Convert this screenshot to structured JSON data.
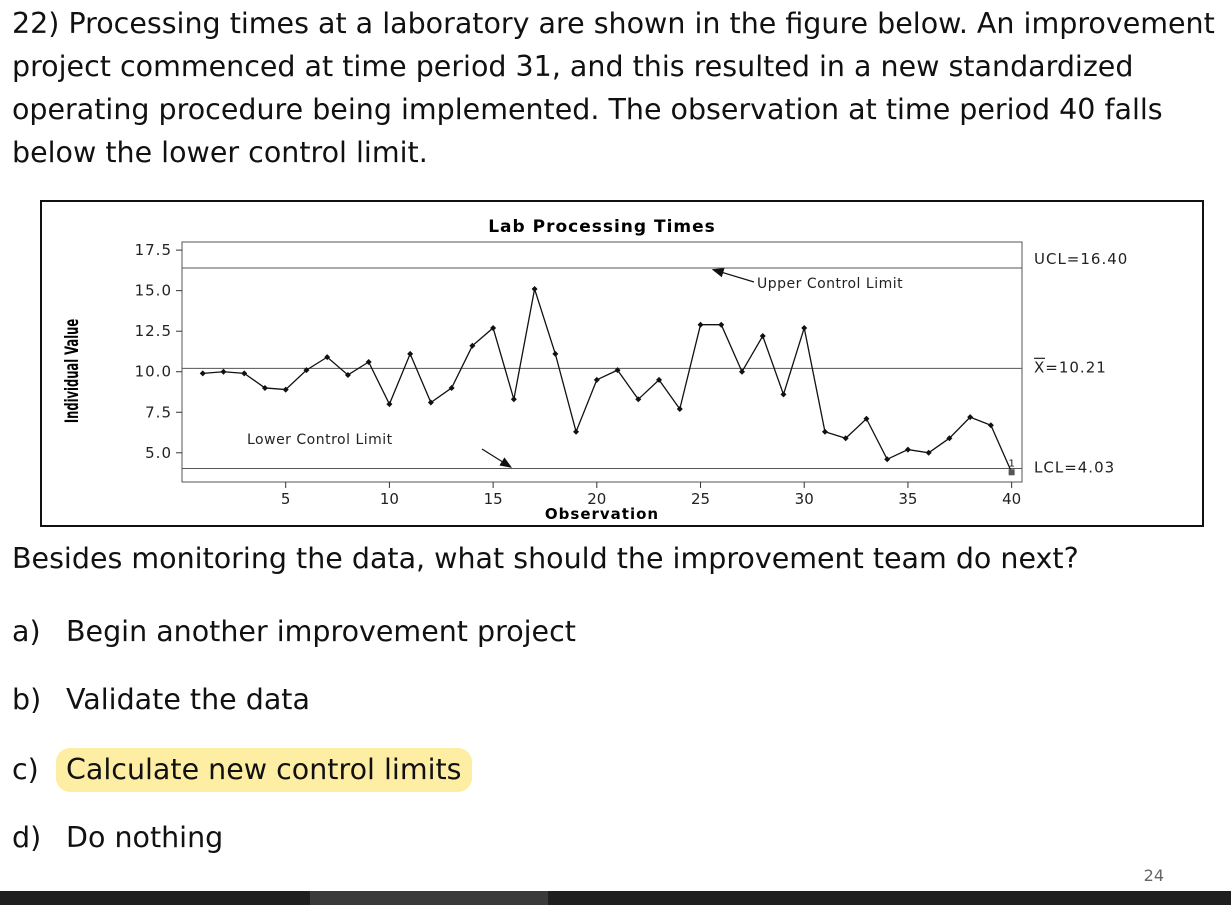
{
  "question": "22) Processing times at a laboratory are shown in the figure below. An improvement project commenced at time period 31, and this resulted in a new standardized operating procedure being implemented. The observation at time period 40 falls below the lower control limit.",
  "prompt": "Besides monitoring the data, what should the improvement team do next?",
  "options": [
    {
      "letter": "a)",
      "text": "Begin another improvement project",
      "highlighted": false
    },
    {
      "letter": "b)",
      "text": "Validate the data",
      "highlighted": false
    },
    {
      "letter": "c)",
      "text": "Calculate new control limits",
      "highlighted": true
    },
    {
      "letter": "d)",
      "text": "Do nothing",
      "highlighted": false
    }
  ],
  "page_number": "24",
  "colors": {
    "highlight": "#fdeea3",
    "line": "#111111",
    "limit_line": "#555555",
    "taskbar": "#1f1f1f"
  },
  "chart_data": {
    "type": "line",
    "title": "Lab Processing Times",
    "xlabel": "Observation",
    "ylabel": "Individual Value",
    "xlim": [
      0,
      40.5
    ],
    "ylim": [
      3.2,
      18
    ],
    "x_ticks": [
      5,
      10,
      15,
      20,
      25,
      30,
      35,
      40
    ],
    "y_ticks": [
      5.0,
      7.5,
      10.0,
      12.5,
      15.0,
      17.5
    ],
    "y_tick_labels": [
      "5.0",
      "7.5",
      "10.0",
      "12.5",
      "15.0",
      "17.5"
    ],
    "x": [
      1,
      2,
      3,
      4,
      5,
      6,
      7,
      8,
      9,
      10,
      11,
      12,
      13,
      14,
      15,
      16,
      17,
      18,
      19,
      20,
      21,
      22,
      23,
      24,
      25,
      26,
      27,
      28,
      29,
      30,
      31,
      32,
      33,
      34,
      35,
      36,
      37,
      38,
      39,
      40
    ],
    "series": [
      {
        "values": [
          9.9,
          10.0,
          9.9,
          9.0,
          8.9,
          10.1,
          10.9,
          9.8,
          10.6,
          8.0,
          11.1,
          8.1,
          9.0,
          11.6,
          12.7,
          8.3,
          15.1,
          11.1,
          6.3,
          9.5,
          10.1,
          8.3,
          9.5,
          7.7,
          12.9,
          12.9,
          10.0,
          12.2,
          8.6,
          12.7,
          6.3,
          5.9,
          7.1,
          4.6,
          5.2,
          5.0,
          5.9,
          7.2,
          6.7,
          3.8
        ]
      }
    ],
    "control_limits": {
      "UCL": 16.4,
      "CL": 10.21,
      "LCL": 4.03
    },
    "limit_labels": {
      "UCL": "UCL=16.40",
      "CL": "X=10.21",
      "LCL": "LCL=4.03"
    },
    "annotations": [
      {
        "text": "Upper Control Limit",
        "points_to": "UCL"
      },
      {
        "text": "Lower Control Limit",
        "points_to": "LCL"
      }
    ],
    "flagged_point": {
      "x": 40,
      "label": "1"
    },
    "grid": false
  }
}
